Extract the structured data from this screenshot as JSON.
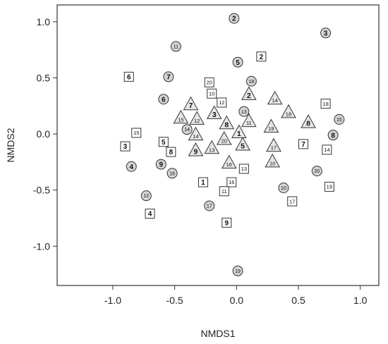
{
  "chart_data": {
    "type": "scatter",
    "title": "",
    "xlabel": "NMDS1",
    "ylabel": "NMDS2",
    "xlim": [
      -1.45,
      1.15
    ],
    "ylim": [
      -1.35,
      1.15
    ],
    "xticks": [
      -1.0,
      -0.5,
      0.0,
      0.5,
      1.0
    ],
    "xtick_labels": [
      "-1.0",
      "-0.5",
      "0.0",
      "0.5",
      "1.0"
    ],
    "yticks": [
      1.0,
      0.5,
      0.0,
      -0.5,
      -1.0
    ],
    "ytick_labels": [
      "1.0",
      "0.5",
      "0.0",
      "-0.5",
      "-1.0"
    ],
    "grid": false,
    "legend": "none",
    "colors": {
      "marker_fill": "#e6e6e6",
      "circle_fill": "#d4d4d4",
      "stroke": "#333333",
      "axis": "#333333"
    },
    "series": [
      {
        "marker": "circle",
        "points": [
          {
            "label": "2",
            "x": -0.02,
            "y": 1.03
          },
          {
            "label": "3",
            "x": 0.72,
            "y": 0.9
          },
          {
            "label": "11",
            "x": -0.49,
            "y": 0.78
          },
          {
            "label": "5",
            "x": 0.01,
            "y": 0.64
          },
          {
            "label": "7",
            "x": -0.55,
            "y": 0.51
          },
          {
            "label": "18",
            "x": 0.12,
            "y": 0.47
          },
          {
            "label": "6",
            "x": -0.59,
            "y": 0.31
          },
          {
            "label": "13",
            "x": 0.06,
            "y": 0.2
          },
          {
            "label": "15",
            "x": 0.83,
            "y": 0.13
          },
          {
            "label": "14",
            "x": -0.4,
            "y": 0.04
          },
          {
            "label": "8",
            "x": 0.78,
            "y": -0.01
          },
          {
            "label": "9",
            "x": -0.61,
            "y": -0.27
          },
          {
            "label": "4",
            "x": -0.85,
            "y": -0.29
          },
          {
            "label": "16",
            "x": -0.52,
            "y": -0.35
          },
          {
            "label": "20",
            "x": 0.65,
            "y": -0.33
          },
          {
            "label": "10",
            "x": 0.38,
            "y": -0.48
          },
          {
            "label": "12",
            "x": -0.73,
            "y": -0.55
          },
          {
            "label": "17",
            "x": -0.22,
            "y": -0.64
          },
          {
            "label": "19",
            "x": 0.01,
            "y": -1.22
          }
        ]
      },
      {
        "marker": "square",
        "points": [
          {
            "label": "2",
            "x": 0.2,
            "y": 0.69
          },
          {
            "label": "6",
            "x": -0.87,
            "y": 0.51
          },
          {
            "label": "20",
            "x": -0.22,
            "y": 0.46
          },
          {
            "label": "10",
            "x": -0.2,
            "y": 0.36
          },
          {
            "label": "12",
            "x": -0.12,
            "y": 0.28
          },
          {
            "label": "18",
            "x": 0.72,
            "y": 0.27
          },
          {
            "label": "15",
            "x": -0.81,
            "y": 0.01
          },
          {
            "label": "3",
            "x": -0.9,
            "y": -0.11
          },
          {
            "label": "5",
            "x": -0.59,
            "y": -0.07
          },
          {
            "label": "8",
            "x": -0.53,
            "y": -0.16
          },
          {
            "label": "7",
            "x": 0.54,
            "y": -0.09
          },
          {
            "label": "14",
            "x": 0.73,
            "y": -0.14
          },
          {
            "label": "13",
            "x": 0.06,
            "y": -0.31
          },
          {
            "label": "1",
            "x": -0.27,
            "y": -0.43
          },
          {
            "label": "16",
            "x": -0.04,
            "y": -0.43
          },
          {
            "label": "11",
            "x": -0.1,
            "y": -0.51
          },
          {
            "label": "19",
            "x": 0.75,
            "y": -0.47
          },
          {
            "label": "17",
            "x": 0.45,
            "y": -0.6
          },
          {
            "label": "4",
            "x": -0.7,
            "y": -0.71
          },
          {
            "label": "9",
            "x": -0.08,
            "y": -0.79
          }
        ]
      },
      {
        "marker": "triangle",
        "points": [
          {
            "label": "2",
            "x": 0.1,
            "y": 0.35
          },
          {
            "label": "14",
            "x": 0.31,
            "y": 0.31
          },
          {
            "label": "7",
            "x": -0.37,
            "y": 0.26
          },
          {
            "label": "18",
            "x": 0.42,
            "y": 0.19
          },
          {
            "label": "3",
            "x": -0.18,
            "y": 0.18
          },
          {
            "label": "15",
            "x": -0.45,
            "y": 0.14
          },
          {
            "label": "12",
            "x": -0.32,
            "y": 0.13
          },
          {
            "label": "11",
            "x": 0.1,
            "y": 0.11
          },
          {
            "label": "8",
            "x": -0.08,
            "y": 0.09
          },
          {
            "label": "8",
            "x": 0.58,
            "y": 0.1
          },
          {
            "label": "19",
            "x": 0.28,
            "y": 0.06
          },
          {
            "label": "1",
            "x": 0.02,
            "y": 0.01
          },
          {
            "label": "14",
            "x": -0.33,
            "y": -0.01
          },
          {
            "label": "20",
            "x": -0.1,
            "y": -0.05
          },
          {
            "label": "5",
            "x": 0.05,
            "y": -0.1
          },
          {
            "label": "17",
            "x": 0.3,
            "y": -0.11
          },
          {
            "label": "13",
            "x": -0.2,
            "y": -0.13
          },
          {
            "label": "9",
            "x": -0.33,
            "y": -0.15
          },
          {
            "label": "16",
            "x": -0.06,
            "y": -0.26
          },
          {
            "label": "10",
            "x": 0.29,
            "y": -0.25
          }
        ]
      }
    ]
  }
}
